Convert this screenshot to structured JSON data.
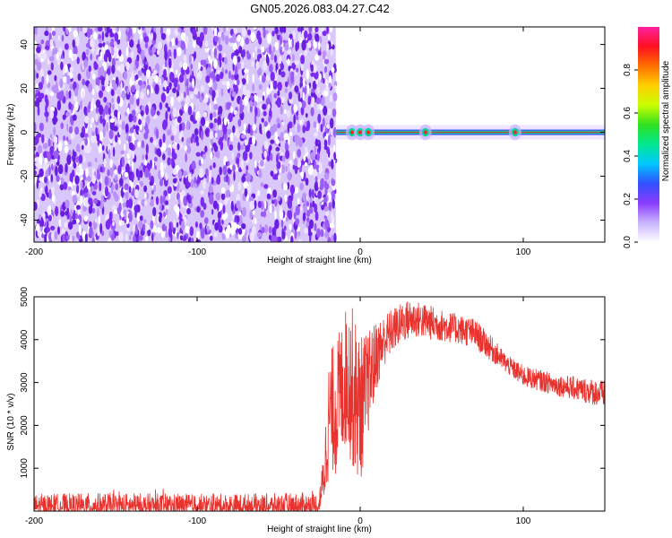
{
  "title": "GN05.2026.083.04.27.C42",
  "colors": {
    "trace": "#e8322e",
    "speckle_dark": "#6a1fe0",
    "speckle_light": "#d9c6fb",
    "colorbar": [
      "#ffffff",
      "#c9b3ff",
      "#8a3cff",
      "#3050ff",
      "#00c8ff",
      "#00e890",
      "#30e020",
      "#c8ff00",
      "#ffd000",
      "#ff7000",
      "#ff1020",
      "#ff20a0"
    ]
  },
  "chart_data": [
    {
      "type": "heatmap",
      "xlabel": "Height of straight line (km)",
      "ylabel": "Frequency (Hz)",
      "xlim": [
        -200,
        150
      ],
      "ylim": [
        -50,
        48
      ],
      "x_ticks": [
        -200,
        -100,
        0,
        100
      ],
      "y_ticks": [
        40,
        20,
        0,
        -20,
        -40
      ],
      "noise_region_x": [
        -200,
        -15
      ],
      "signal_band": {
        "x": [
          -15,
          150
        ],
        "frequency_center": 0,
        "frequency_halfwidth": 1.5
      },
      "hot_spots_x": [
        -5,
        0,
        5,
        40,
        95
      ],
      "colorbar": {
        "label": "Normalized spectral amplitude",
        "range": [
          0,
          1
        ],
        "ticks": [
          0.0,
          0.2,
          0.4,
          0.6,
          0.8
        ]
      }
    },
    {
      "type": "line",
      "xlabel": "Height of straight line (km)",
      "ylabel": "SNR (10 * v/v)",
      "xlim": [
        -200,
        150
      ],
      "ylim": [
        0,
        5000
      ],
      "x_ticks": [
        -200,
        -100,
        0,
        100
      ],
      "y_ticks": [
        1000,
        2000,
        3000,
        4000,
        5000
      ],
      "series": [
        {
          "x": [
            -200,
            -150,
            -100,
            -50,
            -25,
            -22,
            -20,
            -18,
            -15,
            -12,
            -8,
            -5,
            0,
            5,
            10,
            15,
            20,
            25,
            30,
            35,
            40,
            50,
            60,
            70,
            80,
            90,
            100,
            110,
            120,
            130,
            140,
            150
          ],
          "min": [
            0,
            0,
            0,
            0,
            0,
            200,
            600,
            900,
            800,
            1200,
            1500,
            1000,
            600,
            1800,
            2800,
            3400,
            3700,
            3900,
            4000,
            4050,
            4000,
            3950,
            3900,
            3800,
            3500,
            3200,
            2900,
            2800,
            2700,
            2600,
            2500,
            2400
          ],
          "max": [
            450,
            480,
            450,
            470,
            500,
            1500,
            3300,
            3800,
            4000,
            4300,
            4900,
            4800,
            4100,
            4200,
            4450,
            4600,
            4750,
            4850,
            4950,
            4900,
            4850,
            4700,
            4600,
            4500,
            4100,
            3650,
            3400,
            3300,
            3200,
            3150,
            3100,
            3050
          ]
        }
      ]
    }
  ]
}
